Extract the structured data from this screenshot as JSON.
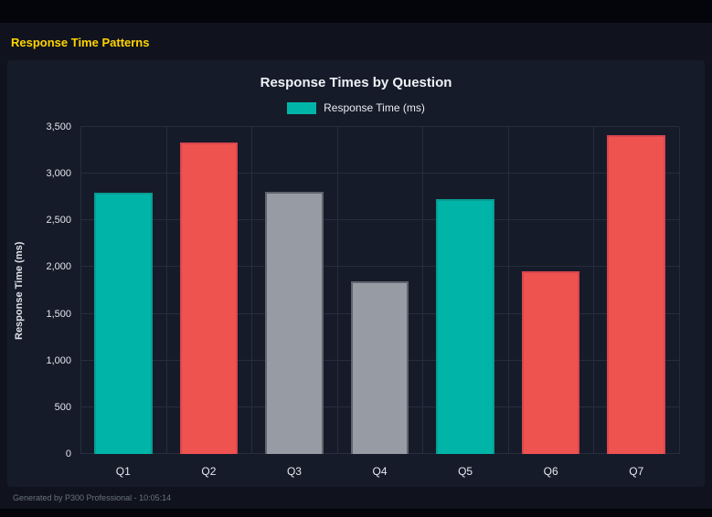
{
  "page": {
    "title": "Response Time Patterns",
    "footer": "Generated by P300 Professional - 10:05:14"
  },
  "colors": {
    "accent_yellow": "#ffd400",
    "teal": "#00b5a8",
    "red": "#ef5350",
    "gray": "#979ba4",
    "panel_bg": "#161b2a",
    "page_bg": "#10131d",
    "gridline": "#272d3c"
  },
  "chart_data": {
    "type": "bar",
    "title": "Response Times by Question",
    "categories": [
      "Q1",
      "Q2",
      "Q3",
      "Q4",
      "Q5",
      "Q6",
      "Q7"
    ],
    "values": [
      2800,
      3330,
      2810,
      1850,
      2730,
      1960,
      3410
    ],
    "bar_colors": [
      "#00b5a8",
      "#ef5350",
      "#979ba4",
      "#979ba4",
      "#00b5a8",
      "#ef5350",
      "#ef5350"
    ],
    "bar_border_colors": [
      "#089d92",
      "#d8464e",
      "#60646e",
      "#60646e",
      "#089d92",
      "#d8464e",
      "#d8464e"
    ],
    "xlabel": "",
    "ylabel": "Response Time (ms)",
    "ylim": [
      0,
      3500
    ],
    "y_tick_values": [
      0,
      500,
      1000,
      1500,
      2000,
      2500,
      3000,
      3500
    ],
    "y_ticks": [
      "0",
      "500",
      "1,000",
      "1,500",
      "2,000",
      "2,500",
      "3,000",
      "3,500"
    ],
    "grid": true,
    "legend_position": "top",
    "legend": [
      {
        "label": "Response Time (ms)",
        "color": "#00b5a8"
      }
    ]
  }
}
